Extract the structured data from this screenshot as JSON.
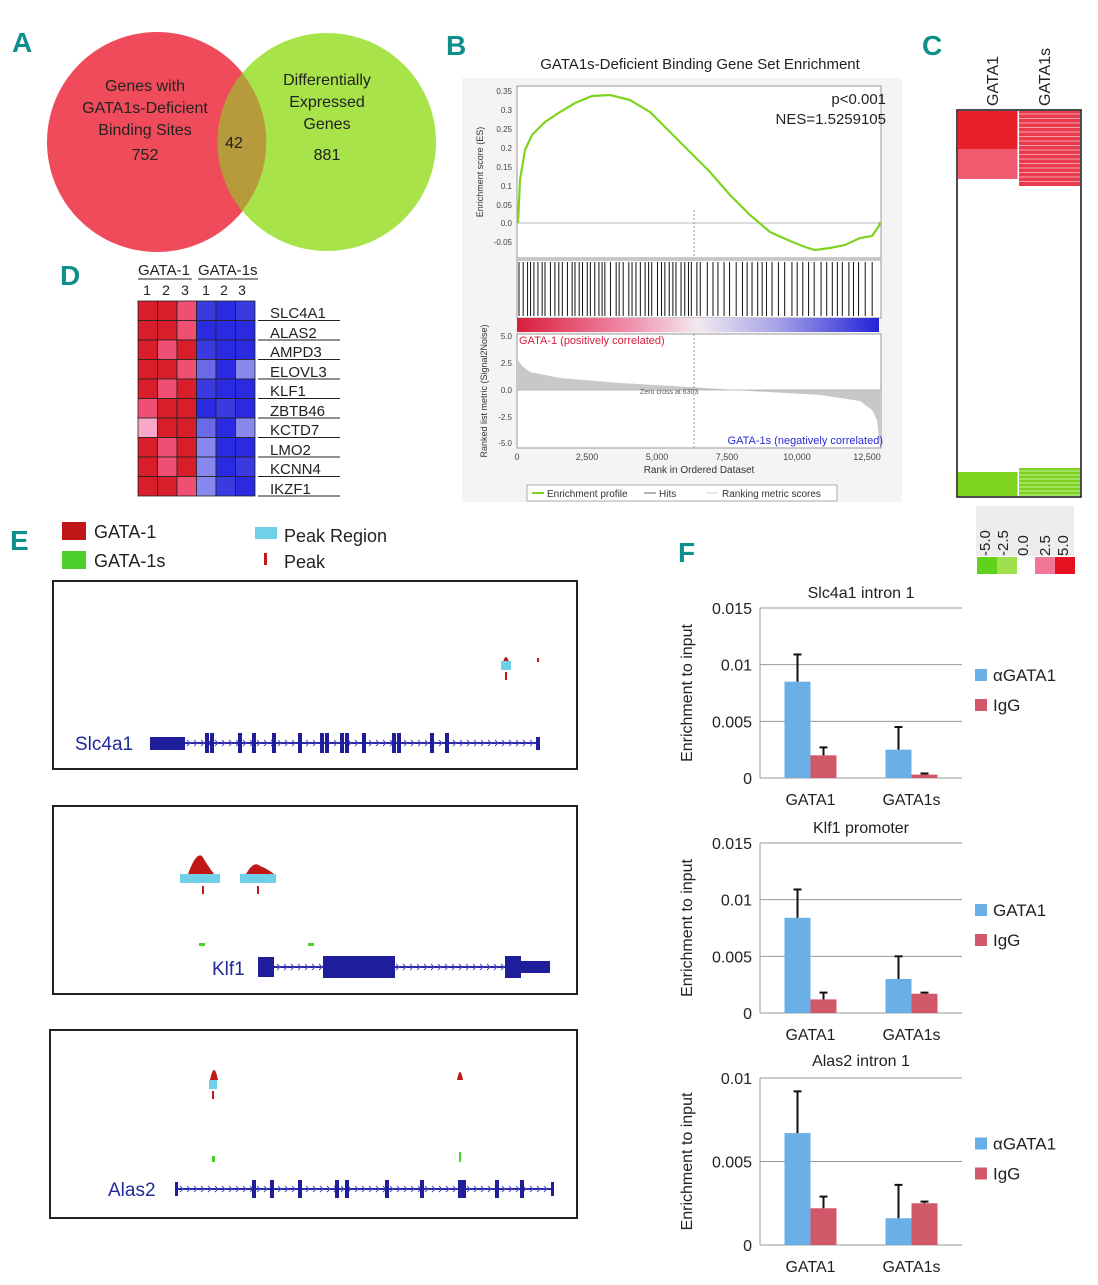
{
  "panels": {
    "a": "A",
    "b": "B",
    "c": "C",
    "d": "D",
    "e": "E",
    "f": "F"
  },
  "venn": {
    "left_l1": "Genes with",
    "left_l2": "GATA1s-Deficient",
    "left_l3": "Binding Sites",
    "left_count": "752",
    "overlap": "42",
    "right_l1": "Differentially",
    "right_l2": "Expressed",
    "right_l3": "Genes",
    "right_count": "881",
    "colors": {
      "left": "#ef4b5a",
      "right": "#a8e34a",
      "overlap": "#b79a3c"
    }
  },
  "gsea": {
    "title": "GATA1s-Deficient Binding Gene Set Enrichment",
    "pval": "p<0.001",
    "nes": "NES=1.5259105",
    "es_ylabel": "Enrichment score (ES)",
    "es_ticks": [
      "0.35",
      "0.3",
      "0.25",
      "0.2",
      "0.15",
      "0.1",
      "0.05",
      "0.0",
      "-0.05"
    ],
    "rank_ylabel": "Ranked list metric (Signal2Noise)",
    "rank_ticks": [
      "5.0",
      "2.5",
      "0.0",
      "-2.5",
      "-5.0"
    ],
    "x_ticks": [
      "0",
      "2,500",
      "5,000",
      "7,500",
      "10,000",
      "12,500"
    ],
    "xlabel": "Rank in Ordered Dataset",
    "pos_label": "GATA-1 (positively correlated)",
    "neg_label": "GATA-1s (negatively correlated)",
    "zero_cross": "Zero cross at 6303",
    "legend": {
      "profile": "Enrichment profile",
      "hits": "Hits",
      "metric": "Ranking metric scores"
    }
  },
  "heatmap_c": {
    "col1": "GATA1",
    "col2": "GATA1s",
    "scale": [
      "-5.0",
      "-2.5",
      "0.0",
      "2.5",
      "5.0"
    ]
  },
  "heatmap_d": {
    "group1": "GATA-1",
    "group2": "GATA-1s",
    "reps": [
      "1",
      "2",
      "3",
      "1",
      "2",
      "3"
    ],
    "genes": [
      "SLC4A1",
      "ALAS2",
      "AMPD3",
      "ELOVL3",
      "KLF1",
      "ZBTB46",
      "KCTD7",
      "LMO2",
      "KCNN4",
      "IKZF1"
    ]
  },
  "tracks": {
    "legend_gata1": "GATA-1",
    "legend_gata1s": "GATA-1s",
    "legend_peak_region": "Peak Region",
    "legend_peak": "Peak",
    "genes": [
      "Slc4a1",
      "Klf1",
      "Alas2"
    ]
  },
  "chart_data": [
    {
      "type": "bar",
      "title": "Slc4a1 intron 1",
      "categories": [
        "GATA1",
        "GATA1s"
      ],
      "series": [
        {
          "name": "αGATA1",
          "values": [
            0.0085,
            0.0025
          ],
          "errors": [
            0.0024,
            0.002
          ]
        },
        {
          "name": "IgG",
          "values": [
            0.002,
            0.0003
          ],
          "errors": [
            0.0007,
            0.0001
          ]
        }
      ],
      "ylabel": "Enrichment to input",
      "ylim": [
        0,
        0.015
      ],
      "yticks": [
        "0",
        "0.005",
        "0.01",
        "0.015"
      ]
    },
    {
      "type": "bar",
      "title": "Klf1 promoter",
      "categories": [
        "GATA1",
        "GATA1s"
      ],
      "series": [
        {
          "name": "GATA1",
          "values": [
            0.0084,
            0.003
          ],
          "errors": [
            0.0025,
            0.002
          ]
        },
        {
          "name": "IgG",
          "values": [
            0.0012,
            0.0017
          ],
          "errors": [
            0.0006,
            0.0001
          ]
        }
      ],
      "ylabel": "Enrichment to input",
      "ylim": [
        0,
        0.015
      ],
      "yticks": [
        "0",
        "0.005",
        "0.01",
        "0.015"
      ]
    },
    {
      "type": "bar",
      "title": "Alas2 intron 1",
      "categories": [
        "GATA1",
        "GATA1s"
      ],
      "series": [
        {
          "name": "αGATA1",
          "values": [
            0.0067,
            0.0016
          ],
          "errors": [
            0.0025,
            0.002
          ]
        },
        {
          "name": "IgG",
          "values": [
            0.0022,
            0.0025
          ],
          "errors": [
            0.0007,
            0.0001
          ]
        }
      ],
      "ylabel": "Enrichment to input",
      "ylim": [
        0,
        0.01
      ],
      "yticks": [
        "0",
        "0.005",
        "0.01"
      ]
    }
  ]
}
